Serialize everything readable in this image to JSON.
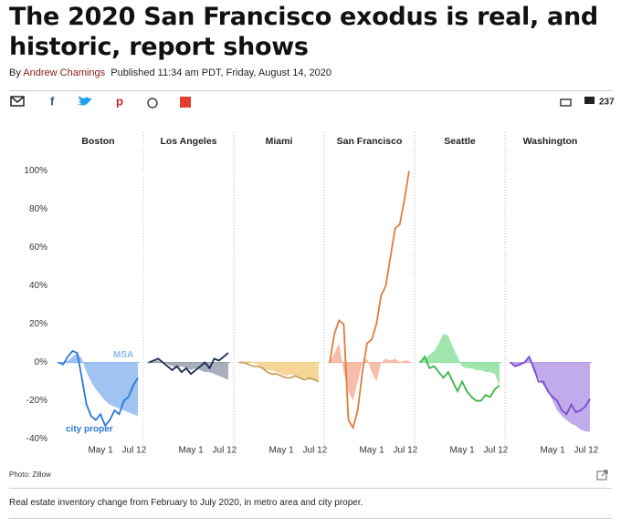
{
  "header": {
    "title": "The 2020 San Francisco exodus is real, and historic, report shows",
    "byline_prefix": "By",
    "author": "Andrew Chamings",
    "published": "Published 11:34 am PDT, Friday, August 14, 2020"
  },
  "toolbar": {
    "comments": "237"
  },
  "chart_data": {
    "type": "line",
    "x": [
      "Feb 1",
      "Feb 11",
      "Feb 21",
      "Mar 2",
      "Mar 12",
      "Mar 22",
      "Apr 1",
      "Apr 11",
      "Apr 21",
      "May 1",
      "May 11",
      "May 21",
      "May 31",
      "Jun 10",
      "Jun 20",
      "Jun 30",
      "Jul 10",
      "Jul 20"
    ],
    "xticks": [
      "May 1",
      "Jul 12"
    ],
    "ylim": [
      -44,
      105
    ],
    "yticks": [
      {
        "value": -40,
        "label": "-40%"
      },
      {
        "value": -20,
        "label": "-20%"
      },
      {
        "value": 0,
        "label": "0%"
      },
      {
        "value": 20,
        "label": "20%"
      },
      {
        "value": 40,
        "label": "40%"
      },
      {
        "value": 60,
        "label": "60%"
      },
      {
        "value": 80,
        "label": "80%"
      },
      {
        "value": 100,
        "label": "100%"
      }
    ],
    "panels": [
      {
        "title": "Boston",
        "series": [
          {
            "name": "MSA",
            "color": "#8fb8f0",
            "values": [
              0,
              0,
              1,
              3,
              5,
              2,
              -5,
              -10,
              -14,
              -17,
              -20,
              -22,
              -23,
              -24,
              -25,
              -26,
              -27,
              -28
            ]
          },
          {
            "name": "city proper",
            "color": "#2b78d6",
            "values": [
              0,
              -1,
              3,
              6,
              5,
              -8,
              -22,
              -28,
              -30,
              -27,
              -33,
              -30,
              -25,
              -27,
              -20,
              -18,
              -12,
              -8
            ]
          }
        ]
      },
      {
        "title": "Los Angeles",
        "series": [
          {
            "color": "#9aa0b0",
            "values": [
              0,
              1,
              1,
              0,
              -1,
              -2,
              -3,
              -2,
              -3,
              -4,
              -3,
              -4,
              -5,
              -5,
              -6,
              -7,
              -8,
              -9
            ]
          },
          {
            "color": "#1c2a52",
            "values": [
              0,
              1,
              2,
              0,
              -2,
              -4,
              -2,
              -5,
              -3,
              -6,
              -4,
              -2,
              0,
              -3,
              2,
              1,
              3,
              5
            ]
          }
        ]
      },
      {
        "title": "Miami",
        "series": [
          {
            "color": "#f5cf86",
            "values": [
              0,
              0,
              1,
              0,
              -1,
              -3,
              -4,
              -4,
              -5,
              -6,
              -7,
              -6,
              -7,
              -8,
              -8,
              -9,
              -9,
              -10
            ]
          },
          {
            "color": "#c9a25a",
            "values": [
              0,
              0,
              -1,
              -2,
              -2,
              -3,
              -5,
              -6,
              -6,
              -7,
              -8,
              -8,
              -7,
              -8,
              -9,
              -8,
              -9,
              -10
            ]
          }
        ]
      },
      {
        "title": "San Francisco",
        "series": [
          {
            "color": "#f5b39a",
            "values": [
              0,
              5,
              10,
              -5,
              -15,
              -20,
              -10,
              0,
              2,
              -5,
              -10,
              0,
              2,
              1,
              2,
              0,
              1,
              1
            ]
          },
          {
            "color": "#e07b3e",
            "values": [
              0,
              15,
              22,
              20,
              -30,
              -34,
              -25,
              -5,
              10,
              12,
              20,
              35,
              40,
              55,
              70,
              72,
              85,
              100
            ]
          }
        ]
      },
      {
        "title": "Seattle",
        "series": [
          {
            "color": "#8fe0a0",
            "values": [
              0,
              2,
              4,
              6,
              10,
              15,
              14,
              8,
              3,
              -2,
              -3,
              -3,
              -4,
              -4,
              -5,
              -5,
              -6,
              -12
            ]
          },
          {
            "color": "#3ab54a",
            "values": [
              0,
              3,
              -3,
              -2,
              -5,
              -8,
              -5,
              -10,
              -15,
              -10,
              -15,
              -18,
              -20,
              -20,
              -17,
              -18,
              -14,
              -12
            ]
          }
        ]
      },
      {
        "title": "Washington",
        "series": [
          {
            "color": "#b79ce8",
            "values": [
              0,
              -2,
              -2,
              0,
              2,
              -5,
              -8,
              -12,
              -15,
              -20,
              -25,
              -28,
              -30,
              -32,
              -33,
              -35,
              -36,
              -36
            ]
          },
          {
            "color": "#7a4bd1",
            "values": [
              0,
              -2,
              -1,
              0,
              3,
              -3,
              -10,
              -10,
              -15,
              -18,
              -20,
              -25,
              -27,
              -22,
              -26,
              -25,
              -23,
              -19
            ]
          }
        ]
      }
    ]
  },
  "photo_credit": "Photo: Zillow",
  "caption": "Real estate inventory change from February to July 2020, in metro area and city proper."
}
